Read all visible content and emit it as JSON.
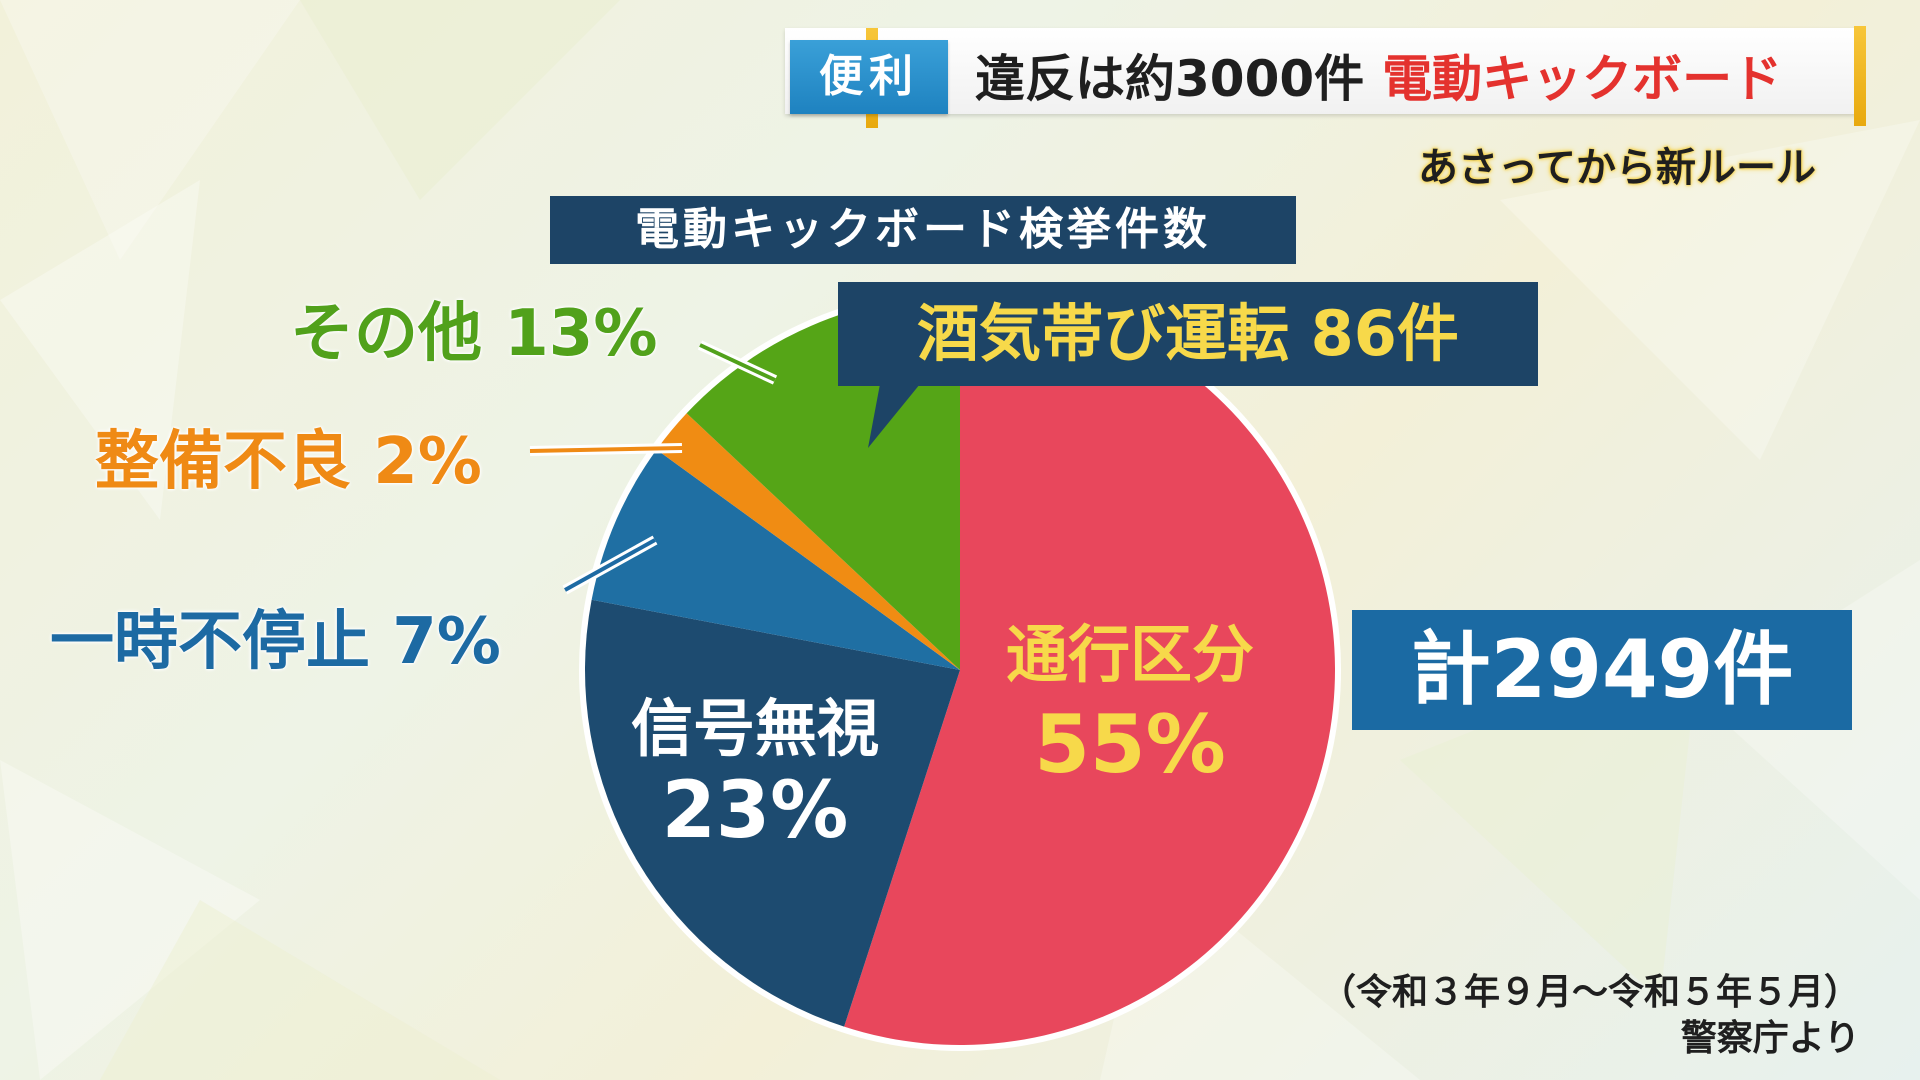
{
  "header": {
    "tag": "便利",
    "headline_main": "違反は約3000件",
    "headline_accent": "電動キックボード",
    "subheadline": "あさってから新ルール",
    "accent_color": "#e4322e"
  },
  "callout": "酒気帯び運転 86件",
  "total": "計2949件",
  "labels": {
    "other": "その他 13%",
    "maintenance": "整備不良 2%",
    "stop": "一時不停止 7%",
    "signal_name": "信号無視",
    "signal_pct": "23%",
    "pass_name": "通行区分",
    "pass_pct": "55%"
  },
  "source": {
    "period": "（令和３年９月〜令和５年５月）",
    "org": "警察庁より"
  },
  "chart_data": {
    "type": "pie",
    "title": "電動キックボード検挙件数",
    "total": 2949,
    "unit": "%",
    "slices": [
      {
        "name": "通行区分",
        "value": 55,
        "color": "#e8475c"
      },
      {
        "name": "信号無視",
        "value": 23,
        "color": "#1d4b70"
      },
      {
        "name": "一時不停止",
        "value": 7,
        "color": "#1f6fa3"
      },
      {
        "name": "整備不良",
        "value": 2,
        "color": "#f08c13"
      },
      {
        "name": "その他",
        "value": 13,
        "color": "#55a517"
      }
    ],
    "start": "12 o'clock",
    "direction": "clockwise"
  }
}
